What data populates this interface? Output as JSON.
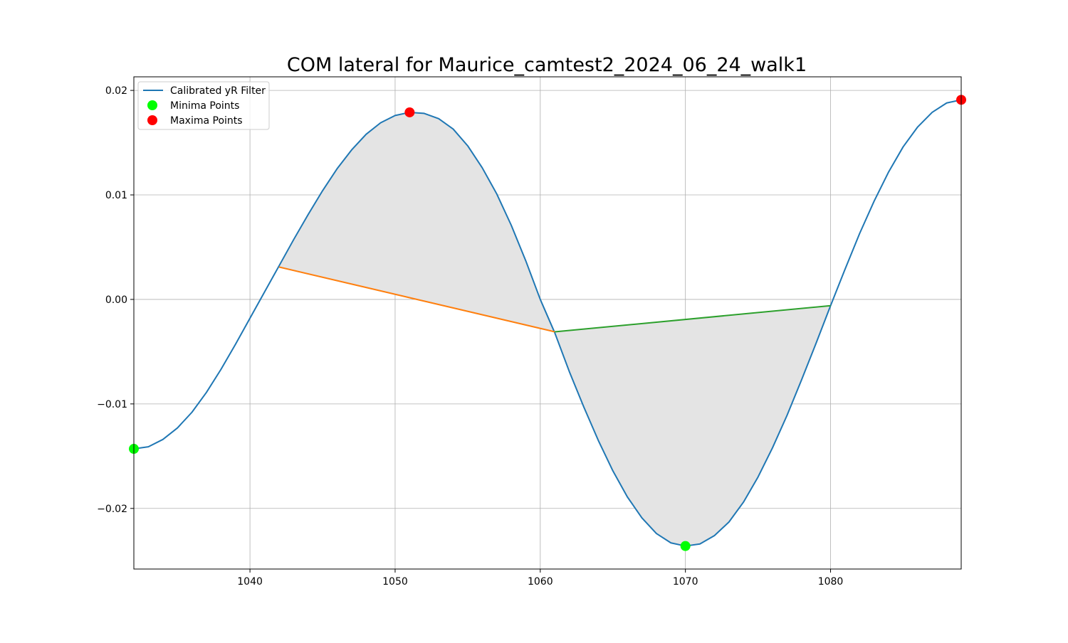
{
  "chart_data": {
    "type": "line",
    "title": "COM lateral for Maurice_camtest2_2024_06_24_walk1",
    "xlabel": "",
    "ylabel": "",
    "xlim": [
      1032,
      1089
    ],
    "ylim": [
      -0.0258,
      0.0213
    ],
    "grid": true,
    "legend_placement": "top-left",
    "x_ticks": [
      1040,
      1050,
      1060,
      1070,
      1080
    ],
    "x_tick_labels": [
      "1040",
      "1050",
      "1060",
      "1070",
      "1080"
    ],
    "y_ticks": [
      -0.02,
      -0.01,
      0.0,
      0.01,
      0.02
    ],
    "y_tick_labels": [
      "−0.02",
      "−0.01",
      "0.00",
      "0.01",
      "0.02"
    ],
    "series": [
      {
        "name": "Calibrated yR Filter",
        "color": "#1f77b4",
        "x": [
          1032,
          1033,
          1034,
          1035,
          1036,
          1037,
          1038,
          1039,
          1040,
          1041,
          1042,
          1043,
          1044,
          1045,
          1046,
          1047,
          1048,
          1049,
          1050,
          1051,
          1052,
          1053,
          1054,
          1055,
          1056,
          1057,
          1058,
          1059,
          1060,
          1061,
          1062,
          1063,
          1064,
          1065,
          1066,
          1067,
          1068,
          1069,
          1070,
          1071,
          1072,
          1073,
          1074,
          1075,
          1076,
          1077,
          1078,
          1079,
          1080,
          1081,
          1082,
          1083,
          1084,
          1085,
          1086,
          1087,
          1088,
          1089
        ],
        "y": [
          -0.0143,
          -0.0141,
          -0.0134,
          -0.0123,
          -0.0108,
          -0.0089,
          -0.0067,
          -0.0043,
          -0.0018,
          0.0007,
          0.0032,
          0.0057,
          0.0081,
          0.0104,
          0.0125,
          0.0143,
          0.0158,
          0.0169,
          0.0176,
          0.0179,
          0.0178,
          0.0173,
          0.0163,
          0.0147,
          0.0126,
          0.0101,
          0.0071,
          0.0037,
          0.0,
          -0.0032,
          -0.0069,
          -0.0103,
          -0.0135,
          -0.0164,
          -0.0189,
          -0.0209,
          -0.0224,
          -0.0233,
          -0.0236,
          -0.0234,
          -0.0226,
          -0.0213,
          -0.0194,
          -0.017,
          -0.0142,
          -0.0111,
          -0.0077,
          -0.0042,
          -0.0006,
          0.0029,
          0.0063,
          0.0094,
          0.0122,
          0.0146,
          0.0165,
          0.0179,
          0.0188,
          0.0191
        ]
      },
      {
        "name": "",
        "color": "#ff7f0e",
        "x": [
          1042,
          1061
        ],
        "y": [
          0.0031,
          -0.0031
        ]
      },
      {
        "name": "",
        "color": "#2ca02c",
        "x": [
          1061,
          1080
        ],
        "y": [
          -0.0031,
          -0.0006
        ]
      },
      {
        "name": "Minima Points",
        "type": "scatter",
        "color": "#00ff00",
        "x": [
          1032,
          1070
        ],
        "y": [
          -0.0143,
          -0.0236
        ]
      },
      {
        "name": "Maxima Points",
        "type": "scatter",
        "color": "#ff0000",
        "x": [
          1051,
          1089
        ],
        "y": [
          0.0179,
          0.0191
        ]
      }
    ],
    "shaded_regions": [
      {
        "x_range": [
          1042,
          1061
        ],
        "between": [
          "Calibrated yR Filter",
          "orange chord"
        ],
        "color": "#e4e4e4"
      },
      {
        "x_range": [
          1061,
          1080
        ],
        "between": [
          "Calibrated yR Filter",
          "green chord"
        ],
        "color": "#e4e4e4"
      }
    ],
    "legend": [
      {
        "label": "Calibrated yR Filter",
        "kind": "line",
        "color": "#1f77b4"
      },
      {
        "label": "Minima Points",
        "kind": "marker",
        "color": "#00ff00"
      },
      {
        "label": "Maxima Points",
        "kind": "marker",
        "color": "#ff0000"
      }
    ]
  }
}
